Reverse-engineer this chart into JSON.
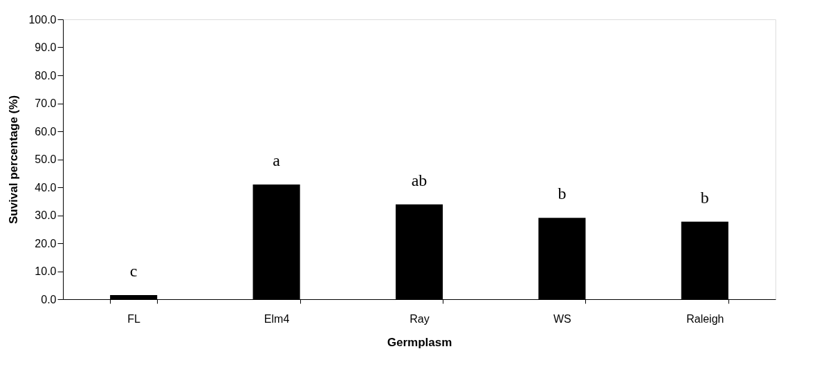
{
  "chart_data": {
    "type": "bar",
    "xlabel": "Germplasm",
    "ylabel": "Suvival percentage (%)",
    "categories": [
      "FL",
      "Elm4",
      "Ray",
      "WS",
      "Raleigh"
    ],
    "values": [
      1.5,
      41.0,
      33.9,
      29.1,
      27.7
    ],
    "color": "#000000",
    "ylim": [
      0,
      100
    ],
    "yticks": [
      {
        "value": 0,
        "label": "0.0"
      },
      {
        "value": 10,
        "label": "10.0"
      },
      {
        "value": 20,
        "label": "20.0"
      },
      {
        "value": 30,
        "label": "30.0"
      },
      {
        "value": 40,
        "label": "40.0"
      },
      {
        "value": 50,
        "label": "50.0"
      },
      {
        "value": 60,
        "label": "60.0"
      },
      {
        "value": 70,
        "label": "70.0"
      },
      {
        "value": 80,
        "label": "80.0"
      },
      {
        "value": 90,
        "label": "90.0"
      },
      {
        "value": 100,
        "label": "100.0"
      }
    ],
    "grid": false,
    "annotations": [
      "c",
      "a",
      "ab",
      "b",
      "b"
    ]
  }
}
